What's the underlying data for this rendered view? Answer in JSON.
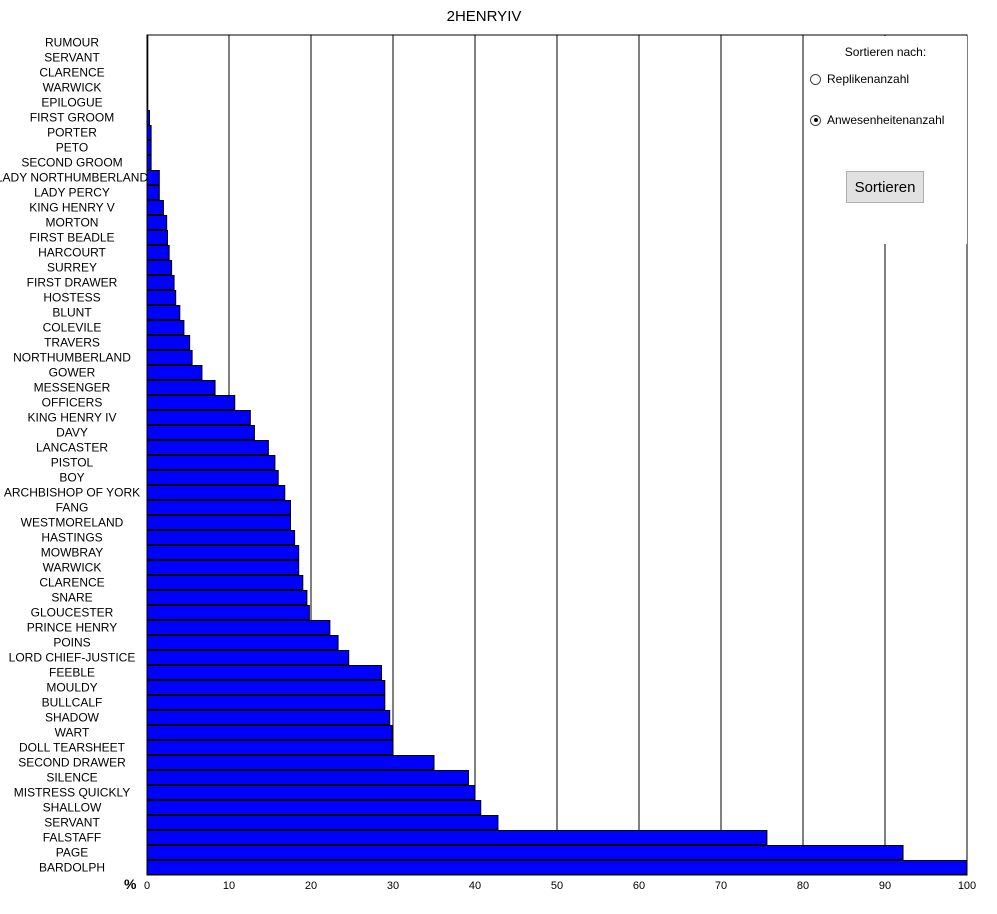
{
  "chart_data": {
    "type": "bar",
    "orientation": "horizontal",
    "title": "2HENRYIV",
    "unit_label": "%",
    "xlim": [
      0,
      100
    ],
    "x_ticks": [
      "0",
      "10",
      "20",
      "30",
      "40",
      "50",
      "60",
      "70",
      "80",
      "90",
      "100"
    ],
    "grid": "vertical",
    "bar_color": "#0000ff",
    "categories": [
      "RUMOUR",
      "SERVANT",
      "CLARENCE",
      "WARWICK",
      "EPILOGUE",
      "FIRST GROOM",
      "PORTER",
      "PETO",
      "SECOND GROOM",
      "LADY NORTHUMBERLAND",
      "LADY PERCY",
      "KING HENRY V",
      "MORTON",
      "FIRST BEADLE",
      "HARCOURT",
      "SURREY",
      "FIRST DRAWER",
      "HOSTESS",
      "BLUNT",
      "COLEVILE",
      "TRAVERS",
      "NORTHUMBERLAND",
      "GOWER",
      "MESSENGER",
      "OFFICERS",
      "KING HENRY IV",
      "DAVY",
      "LANCASTER",
      "PISTOL",
      "BOY",
      "ARCHBISHOP OF YORK",
      "FANG",
      "WESTMORELAND",
      "HASTINGS",
      "MOWBRAY",
      "WARWICK",
      "CLARENCE",
      "SNARE",
      "GLOUCESTER",
      "PRINCE HENRY",
      "POINS",
      "LORD CHIEF-JUSTICE",
      "FEEBLE",
      "MOULDY",
      "BULLCALF",
      "SHADOW",
      "WART",
      "DOLL TEARSHEET",
      "SECOND DRAWER",
      "SILENCE",
      "MISTRESS QUICKLY",
      "SHALLOW",
      "SERVANT",
      "FALSTAFF",
      "PAGE",
      "BARDOLPH"
    ],
    "values": [
      0.1,
      0.1,
      0.1,
      0.1,
      0.1,
      0.3,
      0.5,
      0.5,
      0.5,
      1.5,
      1.5,
      2.0,
      2.4,
      2.5,
      2.7,
      3.0,
      3.3,
      3.5,
      4.0,
      4.5,
      5.2,
      5.5,
      6.7,
      8.3,
      10.7,
      12.6,
      13.1,
      14.8,
      15.6,
      16.0,
      16.8,
      17.5,
      17.5,
      18.0,
      18.5,
      18.5,
      19.0,
      19.5,
      19.8,
      22.3,
      23.3,
      24.6,
      28.6,
      29.0,
      29.0,
      29.6,
      29.9,
      30.0,
      35.0,
      39.2,
      40.0,
      40.7,
      42.8,
      75.6,
      92.2,
      100.0
    ]
  },
  "sort_panel": {
    "heading": "Sortieren nach:",
    "options": [
      {
        "label": "Replikenanzahl",
        "selected": false
      },
      {
        "label": "Anwesenheitenanzahl",
        "selected": true
      }
    ],
    "button_label": "Sortieren"
  }
}
